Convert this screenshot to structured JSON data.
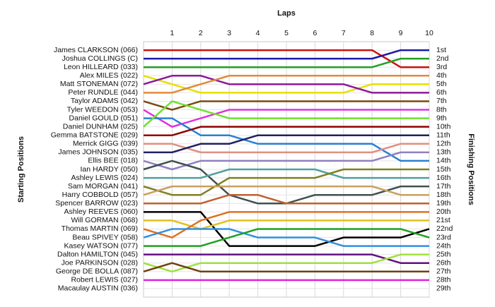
{
  "chart_data": {
    "type": "line",
    "title": "Laps",
    "y_label": "Starting Positions",
    "y2_label": "Finishing Positions",
    "x": [
      0,
      1,
      2,
      3,
      4,
      5,
      6,
      7,
      8,
      9,
      10
    ],
    "xlim": [
      0,
      10
    ],
    "xticks": [
      1,
      2,
      3,
      4,
      5,
      6,
      7,
      8,
      9,
      10
    ],
    "ylim": [
      30,
      0
    ],
    "y2lim": [
      30,
      0
    ],
    "grid": true,
    "y2ticks": [
      {
        "value": 1,
        "label": "1st"
      },
      {
        "value": 2,
        "label": "2nd"
      },
      {
        "value": 3,
        "label": "3rd"
      },
      {
        "value": 4,
        "label": "4th"
      },
      {
        "value": 5,
        "label": "5th"
      },
      {
        "value": 6,
        "label": "6th"
      },
      {
        "value": 7,
        "label": "7th"
      },
      {
        "value": 8,
        "label": "8th"
      },
      {
        "value": 9,
        "label": "9th"
      },
      {
        "value": 10,
        "label": "10th"
      },
      {
        "value": 11,
        "label": "11th"
      },
      {
        "value": 12,
        "label": "12th"
      },
      {
        "value": 13,
        "label": "13th"
      },
      {
        "value": 14,
        "label": "14th"
      },
      {
        "value": 15,
        "label": "15th"
      },
      {
        "value": 16,
        "label": "16th"
      },
      {
        "value": 17,
        "label": "17th"
      },
      {
        "value": 18,
        "label": "18th"
      },
      {
        "value": 19,
        "label": "19th"
      },
      {
        "value": 20,
        "label": "20th"
      },
      {
        "value": 21,
        "label": "21st"
      },
      {
        "value": 22,
        "label": "22nd"
      },
      {
        "value": 23,
        "label": "23rd"
      },
      {
        "value": 24,
        "label": "24th"
      },
      {
        "value": 25,
        "label": "25th"
      },
      {
        "value": 26,
        "label": "26th"
      },
      {
        "value": 27,
        "label": "27th"
      },
      {
        "value": 28,
        "label": "28th"
      },
      {
        "value": 29,
        "label": "29th"
      }
    ],
    "series": [
      {
        "name": "James CLARKSON (066)",
        "color": "#cc1111",
        "values": [
          1,
          1,
          1,
          1,
          1,
          1,
          1,
          1,
          1,
          3,
          3
        ]
      },
      {
        "name": "Joshua COLLINGS (C)",
        "color": "#1a1aa8",
        "values": [
          2,
          2,
          2,
          2,
          2,
          2,
          2,
          2,
          2,
          1,
          1
        ]
      },
      {
        "name": "Leon HILLEARD (033)",
        "color": "#22a022",
        "values": [
          3,
          3,
          3,
          3,
          3,
          3,
          3,
          3,
          3,
          2,
          2
        ]
      },
      {
        "name": "Alex MILES (022)",
        "color": "#e6e000",
        "values": [
          4,
          5,
          6,
          6,
          6,
          6,
          6,
          6,
          5,
          5,
          5
        ]
      },
      {
        "name": "Matt STONEMAN (072)",
        "color": "#8a1a9a",
        "values": [
          5,
          4,
          4,
          5,
          5,
          5,
          5,
          5,
          6,
          6,
          6
        ]
      },
      {
        "name": "Peter RUNDLE (044)",
        "color": "#e08a3a",
        "values": [
          6,
          6,
          5,
          4,
          4,
          4,
          4,
          4,
          4,
          4,
          4
        ]
      },
      {
        "name": "Taylor ADAMS (042)",
        "color": "#7a4a10",
        "values": [
          7,
          8,
          7,
          7,
          7,
          7,
          7,
          7,
          7,
          7,
          7
        ]
      },
      {
        "name": "Tyler WEEDON (053)",
        "color": "#e030e0",
        "values": [
          8,
          10,
          9,
          8,
          8,
          8,
          8,
          8,
          8,
          8,
          8
        ]
      },
      {
        "name": "Daniel GOULD (051)",
        "color": "#2a80d0",
        "values": [
          9,
          9,
          11,
          11,
          12,
          12,
          12,
          12,
          12,
          14,
          14
        ]
      },
      {
        "name": "Daniel DUNHAM (025)",
        "color": "#70e030",
        "values": [
          10,
          7,
          8,
          9,
          9,
          9,
          9,
          9,
          9,
          9,
          9
        ]
      },
      {
        "name": "Gemma BATSTONE (029)",
        "color": "#900000",
        "values": [
          11,
          11,
          10,
          10,
          10,
          10,
          10,
          10,
          10,
          10,
          10
        ]
      },
      {
        "name": "Merrick GIGG (039)",
        "color": "#e09080",
        "values": [
          12,
          12,
          13,
          13,
          13,
          13,
          13,
          13,
          13,
          12,
          12
        ]
      },
      {
        "name": "James JOHNSON (035)",
        "color": "#202060",
        "values": [
          13,
          13,
          12,
          12,
          11,
          11,
          11,
          11,
          11,
          11,
          11
        ]
      },
      {
        "name": "Ellis BEE (018)",
        "color": "#9080c0",
        "values": [
          14,
          15,
          14,
          14,
          14,
          14,
          14,
          14,
          14,
          13,
          13
        ]
      },
      {
        "name": "Ian HARDY (050)",
        "color": "#405050",
        "values": [
          15,
          14,
          15,
          18,
          19,
          19,
          18,
          18,
          18,
          17,
          17
        ]
      },
      {
        "name": "Ashley LEWIS (024)",
        "color": "#50a0a0",
        "values": [
          16,
          16,
          16,
          15,
          15,
          15,
          15,
          16,
          16,
          16,
          16
        ]
      },
      {
        "name": "Sam MORGAN (041)",
        "color": "#808020",
        "values": [
          17,
          18,
          18,
          16,
          16,
          16,
          16,
          15,
          15,
          15,
          15
        ]
      },
      {
        "name": "Harry COBBOLD (057)",
        "color": "#c8a060",
        "values": [
          18,
          17,
          17,
          17,
          17,
          17,
          17,
          17,
          17,
          18,
          18
        ]
      },
      {
        "name": "Spencer BARROW (023)",
        "color": "#c06030",
        "values": [
          19,
          19,
          19,
          18,
          18,
          19,
          19,
          19,
          19,
          19,
          19
        ]
      },
      {
        "name": "Ashley REEVES (060)",
        "color": "#000000",
        "values": [
          20,
          20,
          20,
          24,
          24,
          24,
          24,
          23,
          23,
          23,
          22
        ]
      },
      {
        "name": "Will GORMAN (068)",
        "color": "#e0c020",
        "values": [
          21,
          21,
          22,
          21,
          21,
          21,
          21,
          21,
          21,
          21,
          21
        ]
      },
      {
        "name": "Thomas MARTIN (069)",
        "color": "#e07020",
        "values": [
          22,
          23,
          21,
          20,
          20,
          20,
          20,
          20,
          20,
          20,
          20
        ]
      },
      {
        "name": "Beau SPIVEY (058)",
        "color": "#3090e0",
        "values": [
          23,
          22,
          22,
          22,
          23,
          23,
          23,
          24,
          24,
          24,
          24
        ]
      },
      {
        "name": "Kasey WATSON (077)",
        "color": "#20a020",
        "values": [
          24,
          24,
          24,
          23,
          22,
          22,
          22,
          22,
          22,
          22,
          23
        ]
      },
      {
        "name": "Dalton HAMILTON (045)",
        "color": "#601080",
        "values": [
          25,
          25,
          25,
          25,
          25,
          25,
          25,
          25,
          25,
          26,
          26
        ]
      },
      {
        "name": "Joe PARKINSON (028)",
        "color": "#a0e040",
        "values": [
          26,
          27,
          26,
          26,
          26,
          26,
          26,
          26,
          26,
          25,
          25
        ]
      },
      {
        "name": "George DE BOLLA (087)",
        "color": "#704010",
        "values": [
          27,
          26,
          27,
          27,
          27,
          27,
          27,
          27,
          27,
          27,
          27
        ]
      },
      {
        "name": "Robert LEWIS (027)",
        "color": "#e020e0",
        "values": [
          28,
          28,
          28,
          28,
          28,
          28,
          28,
          28,
          28,
          28,
          28
        ]
      },
      {
        "name": "Macaulay AUSTIN (036)",
        "color": "#999999",
        "values": [
          29,
          null,
          null,
          null,
          null,
          null,
          null,
          null,
          null,
          null,
          null
        ]
      }
    ]
  }
}
